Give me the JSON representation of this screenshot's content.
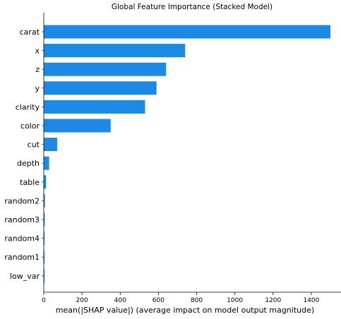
{
  "chart_data": {
    "type": "bar",
    "orientation": "horizontal",
    "title": "Global Feature Importance (Stacked Model)",
    "xlabel": "mean(|SHAP value|) (average impact on model output magnitude)",
    "ylabel": "",
    "xlim": [
      0,
      1500
    ],
    "xticks": [
      0,
      200,
      400,
      600,
      800,
      1000,
      1200,
      1400
    ],
    "grid": false,
    "bar_color": "#1E88E5",
    "categories": [
      "carat",
      "x",
      "z",
      "y",
      "clarity",
      "color",
      "cut",
      "depth",
      "table",
      "random2",
      "random3",
      "random4",
      "random1",
      "low_var"
    ],
    "values": [
      1500,
      740,
      640,
      590,
      530,
      350,
      70,
      28,
      12,
      6,
      5,
      4,
      3,
      1
    ]
  }
}
